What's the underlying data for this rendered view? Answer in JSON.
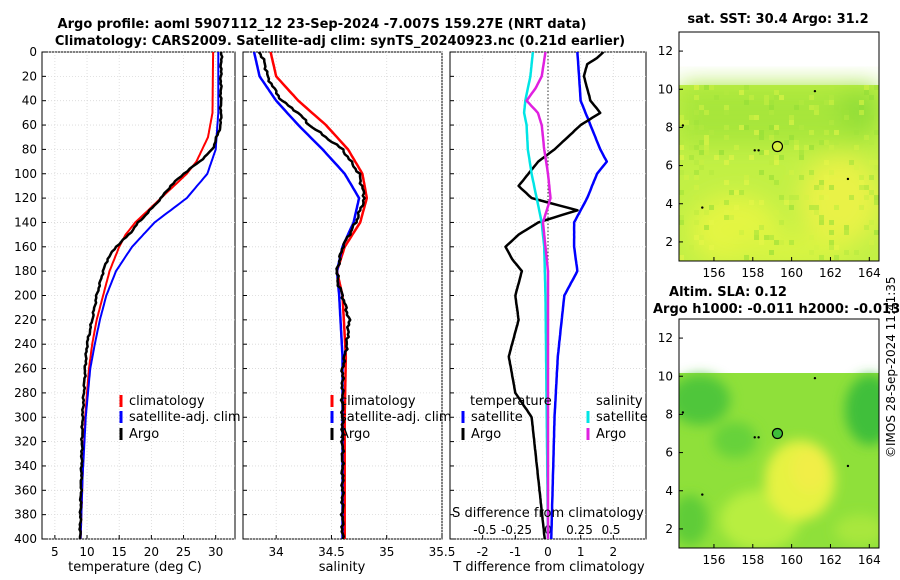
{
  "header": {
    "line1": "Argo profile: aoml 5907112_12 23-Sep-2024 -7.007S 159.27E (NRT data)",
    "line2": "Climatology: CARS2009. Satellite-adj clim: synTS_20240923.nc (0.21d earlier)"
  },
  "footer_stamp": "©IMOS 28-Sep-2024 11:41:35",
  "colors": {
    "climatology": "#ff0000",
    "satellite": "#0000ff",
    "argo": "#000000",
    "sat_salinity": "#00e5e5",
    "argo_salinity": "#e020e0"
  },
  "chart_data": [
    {
      "type": "line",
      "title": "",
      "xlabel": "temperature (deg C)",
      "ylabel": "",
      "xlim": [
        3,
        33
      ],
      "ylim": [
        0,
        400
      ],
      "xticks": [
        "5",
        "10",
        "15",
        "20",
        "25",
        "30"
      ],
      "yticks": [
        "0",
        "20",
        "40",
        "60",
        "80",
        "100",
        "120",
        "140",
        "160",
        "180",
        "200",
        "220",
        "240",
        "260",
        "280",
        "300",
        "320",
        "340",
        "360",
        "380",
        "400"
      ],
      "legend": [
        "climatology",
        "satellite-adj. clim",
        "Argo"
      ],
      "series": [
        {
          "name": "climatology",
          "depth": [
            0,
            50,
            70,
            90,
            100,
            110,
            120,
            130,
            140,
            150,
            160,
            180,
            200,
            220,
            240,
            260,
            300,
            350,
            400
          ],
          "values": [
            29.6,
            29.5,
            28.8,
            27.0,
            25.5,
            23.5,
            21.5,
            19.5,
            17.5,
            16.0,
            15.0,
            13.5,
            12.5,
            11.5,
            10.8,
            10.3,
            9.7,
            9.3,
            9.0
          ]
        },
        {
          "name": "satellite-adj. clim",
          "depth": [
            0,
            50,
            80,
            100,
            120,
            140,
            160,
            180,
            200,
            220,
            240,
            260,
            300,
            350,
            400
          ],
          "values": [
            30.4,
            30.4,
            30.0,
            28.7,
            25.5,
            20.5,
            17.0,
            14.5,
            13.0,
            12.0,
            11.2,
            10.5,
            9.8,
            9.3,
            9.0
          ]
        },
        {
          "name": "Argo",
          "depth": [
            0,
            20,
            40,
            60,
            80,
            90,
            100,
            110,
            120,
            130,
            140,
            150,
            160,
            170,
            180,
            200,
            220,
            240,
            260,
            300,
            350,
            400
          ],
          "values": [
            30.9,
            30.8,
            30.8,
            30.8,
            29.5,
            27.5,
            25.0,
            23.0,
            21.5,
            19.8,
            18.0,
            16.5,
            14.5,
            13.2,
            12.5,
            11.5,
            10.8,
            10.0,
            9.7,
            9.3,
            9.1,
            8.9
          ]
        }
      ]
    },
    {
      "type": "line",
      "xlabel": "salinity",
      "xlim": [
        33.7,
        35.5
      ],
      "ylim": [
        0,
        400
      ],
      "xticks": [
        "34",
        "34.5",
        "35",
        "35.5"
      ],
      "legend": [
        "climatology",
        "satellite-adj. clim",
        "Argo"
      ],
      "series": [
        {
          "name": "climatology",
          "depth": [
            0,
            20,
            40,
            60,
            80,
            100,
            120,
            140,
            160,
            180,
            200,
            250,
            300,
            400
          ],
          "values": [
            33.95,
            34.0,
            34.2,
            34.45,
            34.65,
            34.78,
            34.82,
            34.76,
            34.62,
            34.55,
            34.6,
            34.63,
            34.62,
            34.62
          ]
        },
        {
          "name": "satellite-adj. clim",
          "depth": [
            0,
            20,
            40,
            60,
            80,
            100,
            120,
            140,
            160,
            180,
            200,
            250,
            300,
            400
          ],
          "values": [
            33.8,
            33.85,
            34.0,
            34.2,
            34.42,
            34.62,
            34.75,
            34.7,
            34.6,
            34.55,
            34.57,
            34.6,
            34.6,
            34.6
          ]
        },
        {
          "name": "Argo",
          "depth": [
            0,
            10,
            20,
            30,
            40,
            50,
            60,
            70,
            80,
            100,
            120,
            140,
            160,
            180,
            190,
            200,
            220,
            240,
            260,
            300,
            400
          ],
          "values": [
            33.85,
            33.9,
            33.92,
            33.98,
            34.05,
            34.2,
            34.3,
            34.45,
            34.6,
            34.75,
            34.8,
            34.72,
            34.6,
            34.55,
            34.56,
            34.6,
            34.66,
            34.64,
            34.6,
            34.6,
            34.6
          ]
        }
      ]
    },
    {
      "type": "line",
      "xlabel": "T difference from climatology",
      "xlabel2": "S difference from climatology",
      "xlim": [
        -3,
        3
      ],
      "ylim": [
        0,
        400
      ],
      "xticks": [
        "-2",
        "-1",
        "0",
        "1",
        "2"
      ],
      "s_xticks": [
        "-0.5",
        "-0.25",
        "0",
        "0.25",
        "0.5"
      ],
      "legend_temperature_header": "temperature",
      "legend_salinity_header": "salinity",
      "legend": [
        "satellite",
        "Argo",
        "satellite",
        "Argo"
      ],
      "series": [
        {
          "name": "temperature satellite",
          "depth": [
            0,
            40,
            60,
            80,
            90,
            100,
            120,
            140,
            160,
            180,
            200,
            250,
            300,
            400
          ],
          "values": [
            0.9,
            1.0,
            1.3,
            1.6,
            1.8,
            1.5,
            1.2,
            0.8,
            0.8,
            0.9,
            0.5,
            0.3,
            0.2,
            0.1
          ]
        },
        {
          "name": "temperature Argo",
          "depth": [
            0,
            5,
            10,
            20,
            30,
            40,
            50,
            60,
            70,
            80,
            90,
            100,
            110,
            120,
            130,
            140,
            150,
            160,
            170,
            180,
            200,
            220,
            250,
            280,
            300,
            350,
            400
          ],
          "values": [
            1.7,
            1.5,
            1.2,
            1.1,
            1.2,
            1.3,
            1.6,
            1.0,
            0.6,
            0.2,
            -0.3,
            -0.6,
            -0.9,
            -0.5,
            0.9,
            -0.3,
            -0.9,
            -1.3,
            -1.1,
            -0.8,
            -1.0,
            -0.9,
            -1.2,
            -1.0,
            -0.5,
            -0.3,
            -0.1
          ]
        },
        {
          "name": "salinity satellite",
          "depth": [
            0,
            20,
            40,
            50,
            60,
            80,
            100,
            120,
            140,
            160,
            200,
            300,
            400
          ],
          "values": [
            -0.12,
            -0.14,
            -0.18,
            -0.19,
            -0.17,
            -0.16,
            -0.13,
            -0.09,
            -0.05,
            -0.03,
            -0.02,
            -0.01,
            0.0
          ]
        },
        {
          "name": "salinity Argo",
          "depth": [
            0,
            20,
            30,
            40,
            50,
            60,
            80,
            100,
            120,
            140,
            160,
            180,
            200,
            300,
            400
          ],
          "values": [
            -0.02,
            -0.05,
            -0.1,
            -0.17,
            -0.08,
            -0.05,
            -0.03,
            0.0,
            0.02,
            -0.04,
            -0.02,
            0.0,
            0.0,
            0.0,
            0.0
          ]
        }
      ]
    },
    {
      "type": "heatmap",
      "title": "sat. SST: 30.4 Argo: 31.2",
      "xlim": [
        154.2,
        164.5
      ],
      "ylim": [
        1,
        13
      ],
      "xticks": [
        "156",
        "158",
        "160",
        "162",
        "164"
      ],
      "yticks": [
        "2",
        "4",
        "6",
        "8",
        "10",
        "12"
      ],
      "data_top": 10.1,
      "profile_marker": {
        "lon": 159.27,
        "lat": 7.0
      }
    },
    {
      "type": "heatmap",
      "title": "Altim. SLA: 0.12",
      "subtitle": "Argo h1000: -0.011 h2000: -0.013",
      "xlim": [
        154.2,
        164.5
      ],
      "ylim": [
        1,
        13
      ],
      "xticks": [
        "156",
        "158",
        "160",
        "162",
        "164"
      ],
      "yticks": [
        "2",
        "4",
        "6",
        "8",
        "10",
        "12"
      ],
      "data_top": 10.1,
      "profile_marker": {
        "lon": 159.27,
        "lat": 7.0
      }
    }
  ]
}
